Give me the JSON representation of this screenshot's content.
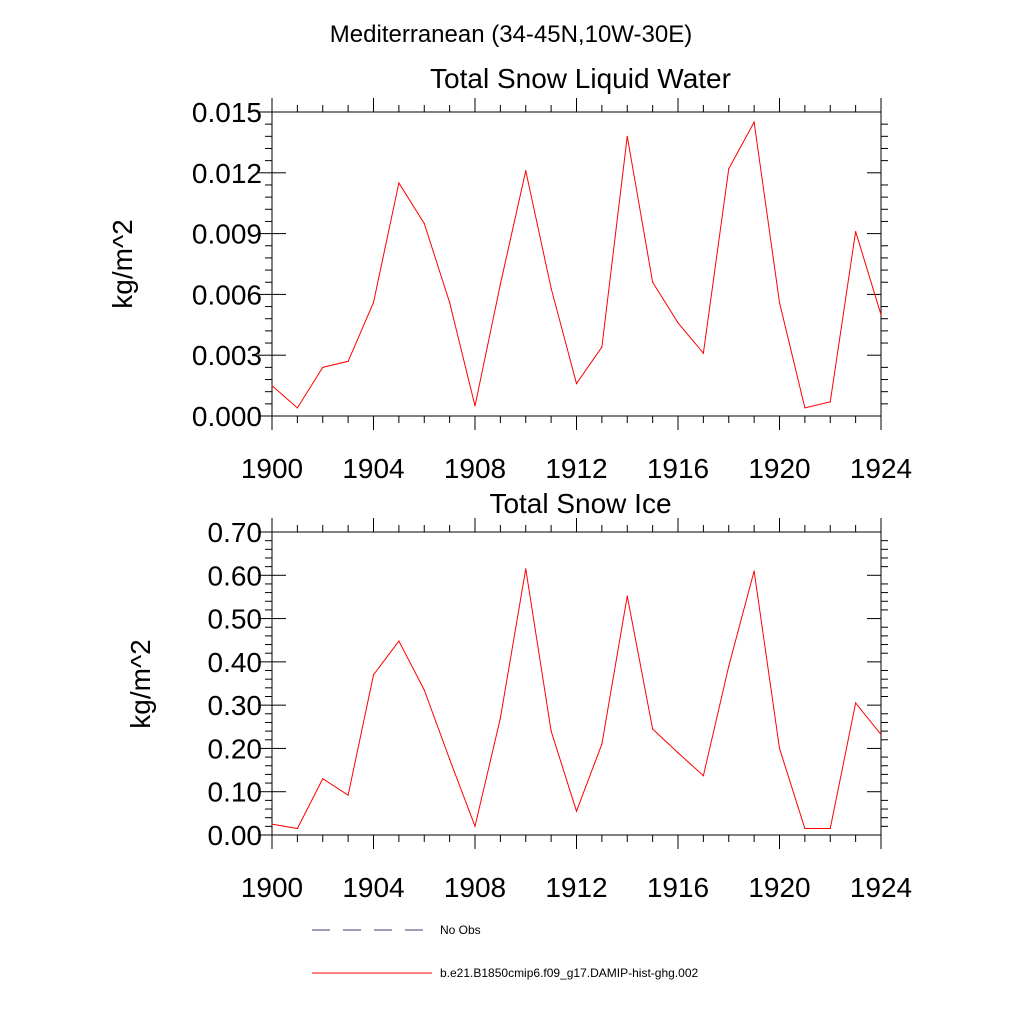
{
  "figure": {
    "suptitle": "Mediterranean (34-45N,10W-30E)"
  },
  "chart_data": [
    {
      "type": "line",
      "title": "Total Snow Liquid Water",
      "xlabel": "",
      "ylabel": "kg/m^2",
      "xlim": [
        1900,
        1924
      ],
      "ylim": [
        0,
        0.015
      ],
      "xticks": [
        1900,
        1904,
        1908,
        1912,
        1916,
        1920,
        1924
      ],
      "xtick_labels": [
        "1900",
        "1904",
        "1908",
        "1912",
        "1916",
        "1920",
        "1924"
      ],
      "yticks": [
        0,
        0.003,
        0.006,
        0.009,
        0.012,
        0.015
      ],
      "ytick_labels": [
        "0.000",
        "0.003",
        "0.006",
        "0.009",
        "0.012",
        "0.015"
      ],
      "grid": false,
      "series": [
        {
          "name": "b.e21.B1850cmip6.f09_g17.DAMIP-hist-ghg.002",
          "color": "#ff0000",
          "x": [
            1900,
            1901,
            1902,
            1903,
            1904,
            1905,
            1906,
            1907,
            1908,
            1909,
            1910,
            1911,
            1912,
            1913,
            1914,
            1915,
            1916,
            1917,
            1918,
            1919,
            1920,
            1921,
            1922,
            1923,
            1924
          ],
          "y": [
            0.0015,
            0.0004,
            0.0024,
            0.0027,
            0.0056,
            0.0115,
            0.0095,
            0.0056,
            0.0005,
            0.0065,
            0.0121,
            0.0063,
            0.0016,
            0.0034,
            0.0138,
            0.0066,
            0.0046,
            0.0031,
            0.0122,
            0.0145,
            0.0056,
            0.0004,
            0.0007,
            0.0091,
            0.005
          ]
        }
      ]
    },
    {
      "type": "line",
      "title": "Total Snow Ice",
      "xlabel": "",
      "ylabel": "kg/m^2",
      "xlim": [
        1900,
        1924
      ],
      "ylim": [
        0,
        0.7
      ],
      "xticks": [
        1900,
        1904,
        1908,
        1912,
        1916,
        1920,
        1924
      ],
      "xtick_labels": [
        "1900",
        "1904",
        "1908",
        "1912",
        "1916",
        "1920",
        "1924"
      ],
      "yticks": [
        0,
        0.1,
        0.2,
        0.3,
        0.4,
        0.5,
        0.6,
        0.7
      ],
      "ytick_labels": [
        "0.00",
        "0.10",
        "0.20",
        "0.30",
        "0.40",
        "0.50",
        "0.60",
        "0.70"
      ],
      "grid": false,
      "series": [
        {
          "name": "b.e21.B1850cmip6.f09_g17.DAMIP-hist-ghg.002",
          "color": "#ff0000",
          "x": [
            1900,
            1901,
            1902,
            1903,
            1904,
            1905,
            1906,
            1907,
            1908,
            1909,
            1910,
            1911,
            1912,
            1913,
            1914,
            1915,
            1916,
            1917,
            1918,
            1919,
            1920,
            1921,
            1922,
            1923,
            1924
          ],
          "y": [
            0.025,
            0.015,
            0.13,
            0.092,
            0.37,
            0.448,
            0.335,
            0.175,
            0.02,
            0.27,
            0.615,
            0.24,
            0.055,
            0.21,
            0.552,
            0.245,
            0.19,
            0.137,
            0.39,
            0.61,
            0.2,
            0.015,
            0.015,
            0.305,
            0.232
          ]
        }
      ]
    }
  ],
  "legend": {
    "placement": "bottom",
    "entries": [
      {
        "label": "No Obs",
        "color": "#3c3c6e",
        "style": "dashed"
      },
      {
        "label": "b.e21.B1850cmip6.f09_g17.DAMIP-hist-ghg.002",
        "color": "#ff0000",
        "style": "solid"
      }
    ]
  }
}
